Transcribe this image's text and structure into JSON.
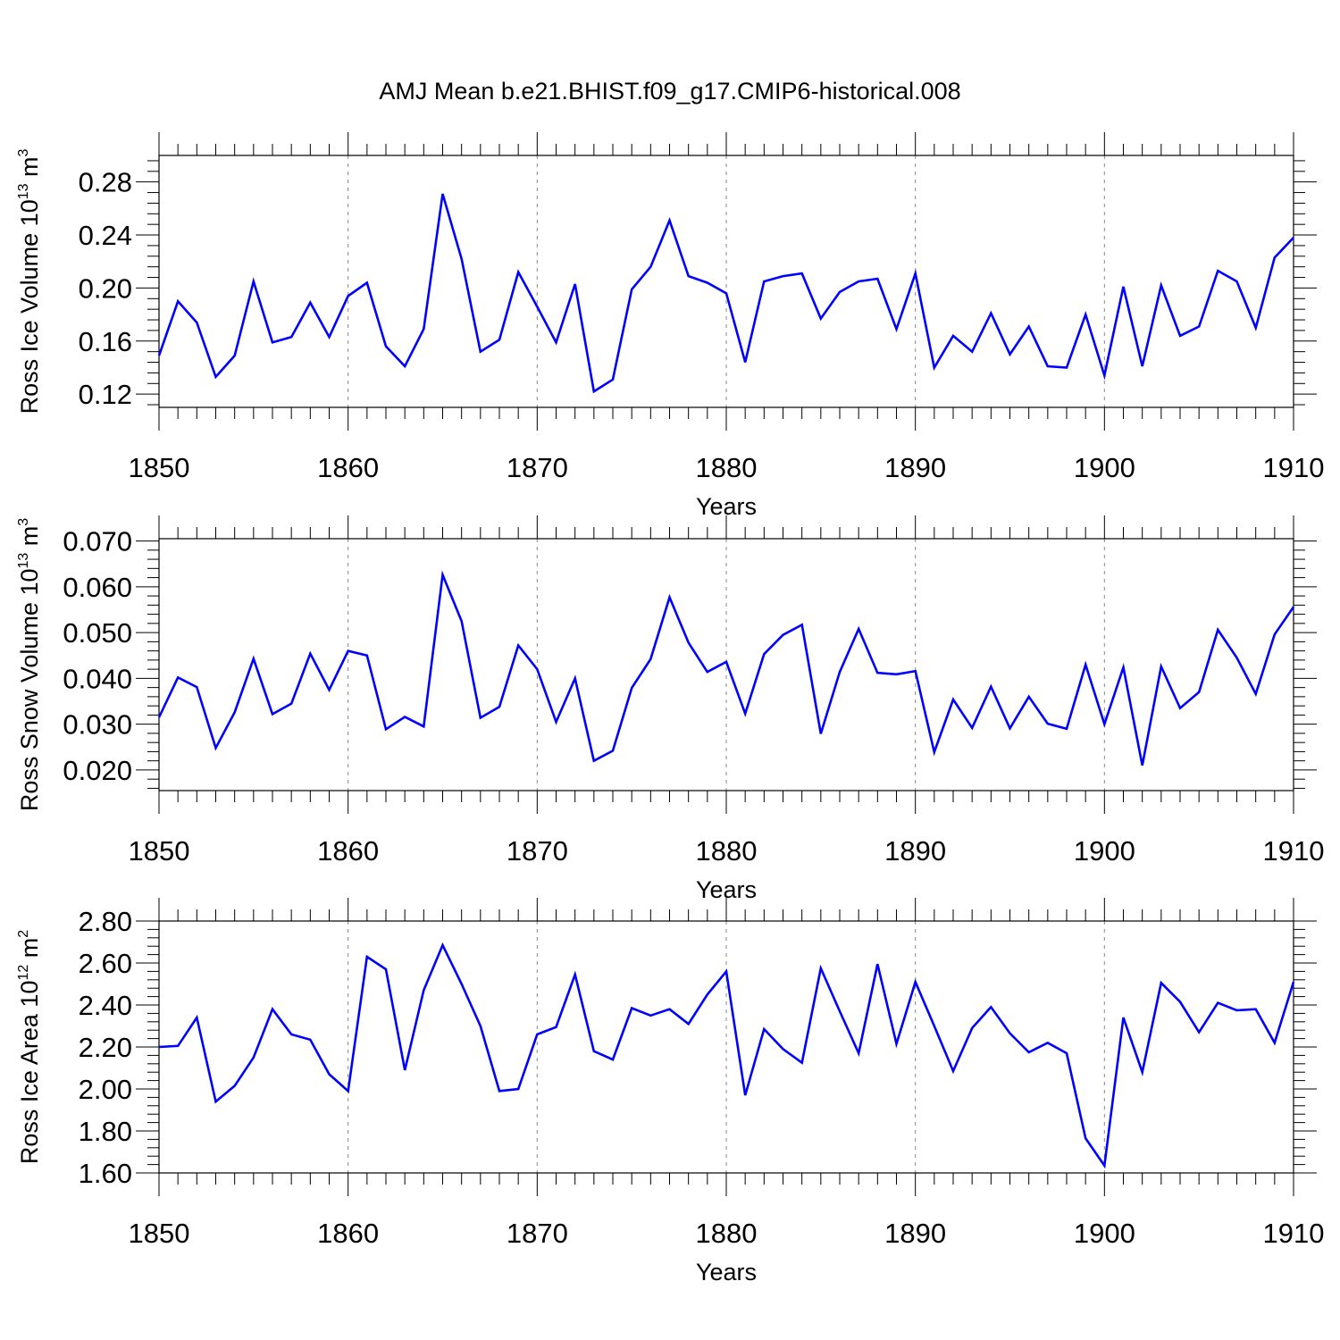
{
  "title": "AMJ Mean b.e21.BHIST.f09_g17.CMIP6-historical.008",
  "colors": {
    "series": "#0000ff",
    "axis": "#000000",
    "grid": "#888888"
  },
  "chart_data": [
    {
      "type": "line",
      "title": "",
      "xlabel": "Years",
      "ylabel": {
        "text": "Ross Ice Volume 10",
        "sup": "13",
        "unit": " m",
        "unit_sup": "3"
      },
      "xlim": [
        1850,
        1910
      ],
      "ylim": [
        0.11,
        0.3
      ],
      "xticks": [
        "1850",
        "1860",
        "1870",
        "1880",
        "1890",
        "1900",
        "1910"
      ],
      "yticks": [
        "0.12",
        "0.16",
        "0.20",
        "0.24",
        "0.28"
      ],
      "grid": "vertical-dashed",
      "x": [
        1850,
        1851,
        1852,
        1853,
        1854,
        1855,
        1856,
        1857,
        1858,
        1859,
        1860,
        1861,
        1862,
        1863,
        1864,
        1865,
        1866,
        1867,
        1868,
        1869,
        1870,
        1871,
        1872,
        1873,
        1874,
        1875,
        1876,
        1877,
        1878,
        1879,
        1880,
        1881,
        1882,
        1883,
        1884,
        1885,
        1886,
        1887,
        1888,
        1889,
        1890,
        1891,
        1892,
        1893,
        1894,
        1895,
        1896,
        1897,
        1898,
        1899,
        1900,
        1901,
        1902,
        1903,
        1904,
        1905,
        1906,
        1907,
        1908,
        1909,
        1910
      ],
      "values": [
        0.149,
        0.19,
        0.174,
        0.133,
        0.149,
        0.205,
        0.159,
        0.163,
        0.189,
        0.163,
        0.194,
        0.204,
        0.156,
        0.141,
        0.169,
        0.271,
        0.222,
        0.152,
        0.161,
        0.212,
        0.186,
        0.159,
        0.203,
        0.122,
        0.131,
        0.199,
        0.216,
        0.251,
        0.209,
        0.204,
        0.196,
        0.144,
        0.205,
        0.209,
        0.211,
        0.177,
        0.197,
        0.205,
        0.207,
        0.169,
        0.211,
        0.14,
        0.164,
        0.152,
        0.181,
        0.15,
        0.171,
        0.141,
        0.14,
        0.18,
        0.134,
        0.201,
        0.141,
        0.202,
        0.164,
        0.171,
        0.213,
        0.205,
        0.17,
        0.223,
        0.238
      ]
    },
    {
      "type": "line",
      "title": "",
      "xlabel": "Years",
      "ylabel": {
        "text": "Ross Snow Volume 10",
        "sup": "13",
        "unit": " m",
        "unit_sup": "3"
      },
      "xlim": [
        1850,
        1910
      ],
      "ylim": [
        0.0155,
        0.0705
      ],
      "xticks": [
        "1850",
        "1860",
        "1870",
        "1880",
        "1890",
        "1900",
        "1910"
      ],
      "yticks": [
        "0.020",
        "0.030",
        "0.040",
        "0.050",
        "0.060",
        "0.070"
      ],
      "grid": "vertical-dashed",
      "x": [
        1850,
        1851,
        1852,
        1853,
        1854,
        1855,
        1856,
        1857,
        1858,
        1859,
        1860,
        1861,
        1862,
        1863,
        1864,
        1865,
        1866,
        1867,
        1868,
        1869,
        1870,
        1871,
        1872,
        1873,
        1874,
        1875,
        1876,
        1877,
        1878,
        1879,
        1880,
        1881,
        1882,
        1883,
        1884,
        1885,
        1886,
        1887,
        1888,
        1889,
        1890,
        1891,
        1892,
        1893,
        1894,
        1895,
        1896,
        1897,
        1898,
        1899,
        1900,
        1901,
        1902,
        1903,
        1904,
        1905,
        1906,
        1907,
        1908,
        1909,
        1910
      ],
      "values": [
        0.0315,
        0.0402,
        0.0381,
        0.0248,
        0.0326,
        0.0443,
        0.0322,
        0.0345,
        0.0454,
        0.0375,
        0.046,
        0.045,
        0.0289,
        0.0316,
        0.0295,
        0.0626,
        0.0525,
        0.0314,
        0.0338,
        0.0472,
        0.042,
        0.0305,
        0.04,
        0.022,
        0.0242,
        0.0379,
        0.0442,
        0.0577,
        0.0478,
        0.0414,
        0.0436,
        0.0323,
        0.0453,
        0.0495,
        0.0517,
        0.0279,
        0.0414,
        0.0508,
        0.0412,
        0.0409,
        0.0416,
        0.0239,
        0.0354,
        0.0292,
        0.0382,
        0.0291,
        0.036,
        0.0301,
        0.029,
        0.043,
        0.03,
        0.0424,
        0.021,
        0.0426,
        0.0335,
        0.037,
        0.0506,
        0.0445,
        0.0366,
        0.0496,
        0.0556
      ]
    },
    {
      "type": "line",
      "title": "",
      "xlabel": "Years",
      "ylabel": {
        "text": "Ross Ice Area 10",
        "sup": "12",
        "unit": " m",
        "unit_sup": "2"
      },
      "xlim": [
        1850,
        1910
      ],
      "ylim": [
        1.6,
        2.8
      ],
      "xticks": [
        "1850",
        "1860",
        "1870",
        "1880",
        "1890",
        "1900",
        "1910"
      ],
      "yticks": [
        "1.60",
        "1.80",
        "2.00",
        "2.20",
        "2.40",
        "2.60",
        "2.80"
      ],
      "grid": "vertical-dashed",
      "x": [
        1850,
        1851,
        1852,
        1853,
        1854,
        1855,
        1856,
        1857,
        1858,
        1859,
        1860,
        1861,
        1862,
        1863,
        1864,
        1865,
        1866,
        1867,
        1868,
        1869,
        1870,
        1871,
        1872,
        1873,
        1874,
        1875,
        1876,
        1877,
        1878,
        1879,
        1880,
        1881,
        1882,
        1883,
        1884,
        1885,
        1886,
        1887,
        1888,
        1889,
        1890,
        1891,
        1892,
        1893,
        1894,
        1895,
        1896,
        1897,
        1898,
        1899,
        1900,
        1901,
        1902,
        1903,
        1904,
        1905,
        1906,
        1907,
        1908,
        1909,
        1910
      ],
      "values": [
        2.2,
        2.205,
        2.34,
        1.94,
        2.015,
        2.15,
        2.38,
        2.26,
        2.235,
        2.07,
        1.99,
        2.63,
        2.57,
        2.09,
        2.47,
        2.685,
        2.5,
        2.3,
        1.99,
        2.0,
        2.26,
        2.295,
        2.545,
        2.18,
        2.14,
        2.385,
        2.35,
        2.38,
        2.31,
        2.45,
        2.56,
        1.97,
        2.285,
        2.19,
        2.125,
        2.575,
        2.37,
        2.17,
        2.595,
        2.215,
        2.51,
        2.3,
        2.085,
        2.29,
        2.39,
        2.265,
        2.175,
        2.22,
        2.17,
        1.765,
        1.635,
        2.34,
        2.08,
        2.505,
        2.415,
        2.27,
        2.41,
        2.375,
        2.38,
        2.22,
        2.51
      ]
    }
  ]
}
